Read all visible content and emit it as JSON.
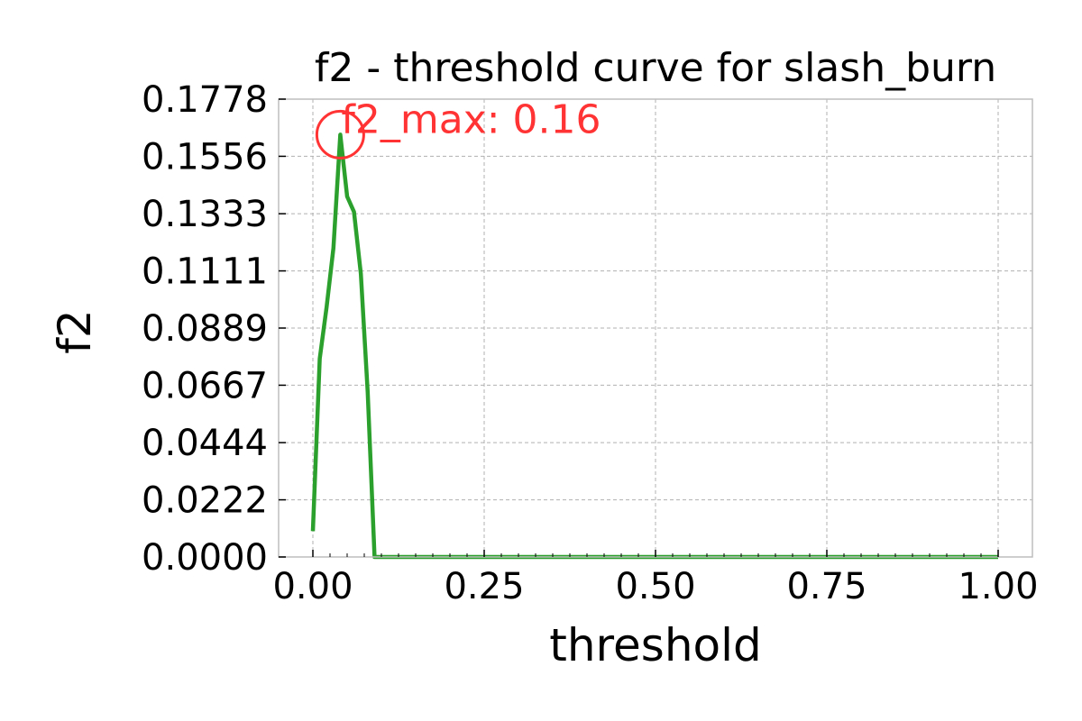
{
  "chart_data": {
    "type": "line",
    "title": "f2 - threshold curve for slash_burn",
    "xlabel": "threshold",
    "ylabel": "f2",
    "xlim": [
      -0.05,
      1.05
    ],
    "ylim": [
      0.0,
      0.1778
    ],
    "xticks": [
      0.0,
      0.25,
      0.5,
      0.75,
      1.0
    ],
    "xtick_labels": [
      "0.00",
      "0.25",
      "0.50",
      "0.75",
      "1.00"
    ],
    "yticks": [
      0.0,
      0.0222,
      0.0444,
      0.0667,
      0.0889,
      0.1111,
      0.1333,
      0.1556,
      0.1778
    ],
    "ytick_labels": [
      "0.0000",
      "0.0222",
      "0.0444",
      "0.0667",
      "0.0889",
      "0.1111",
      "0.1333",
      "0.1556",
      "0.1778"
    ],
    "grid": true,
    "series": [
      {
        "color": "#2ca02c",
        "x": [
          0.0,
          0.01,
          0.02,
          0.03,
          0.04,
          0.05,
          0.06,
          0.07,
          0.08,
          0.09,
          0.1,
          0.2,
          0.3,
          0.4,
          0.5,
          0.6,
          0.7,
          0.8,
          0.9,
          1.0
        ],
        "y": [
          0.01,
          0.077,
          0.097,
          0.12,
          0.164,
          0.14,
          0.134,
          0.11,
          0.064,
          0.0,
          0.0,
          0.0,
          0.0,
          0.0,
          0.0,
          0.0,
          0.0,
          0.0,
          0.0,
          0.0
        ]
      }
    ],
    "annotation": {
      "text": "f2_max: 0.16",
      "x": 0.04,
      "y": 0.164,
      "color": "#ff3333"
    }
  }
}
